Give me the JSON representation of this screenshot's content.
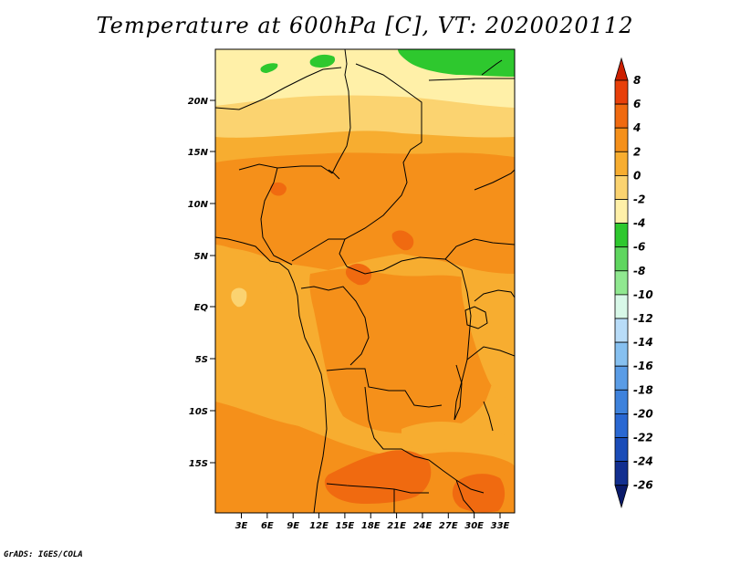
{
  "title": "Temperature at 600hPa [C], VT: 2020020112",
  "credit": "GrADS: IGES/COLA",
  "lat_ticks": [
    "20N",
    "15N",
    "10N",
    "5N",
    "EQ",
    "5S",
    "10S",
    "15S"
  ],
  "lon_ticks": [
    "3E",
    "6E",
    "9E",
    "12E",
    "15E",
    "18E",
    "21E",
    "24E",
    "27E",
    "30E",
    "33E"
  ],
  "colorbar": {
    "labels": [
      "8",
      "6",
      "4",
      "2",
      "0",
      "-2",
      "-4",
      "-6",
      "-8",
      "-10",
      "-12",
      "-14",
      "-16",
      "-18",
      "-20",
      "-22",
      "-24",
      "-26"
    ],
    "colors": [
      "#cc1f00",
      "#e8400a",
      "#f06a10",
      "#f5901a",
      "#f7ad30",
      "#fbd370",
      "#fff0a8",
      "#2ec82e",
      "#5fd65f",
      "#90e890",
      "#d8f8e8",
      "#b8dcf8",
      "#86c0f0",
      "#5a9ce6",
      "#3e82dc",
      "#2a68d2",
      "#1a4cb8",
      "#122f90",
      "#0a1a6a"
    ]
  },
  "colors": {
    "c_lt4": "#2ec82e",
    "c_m4": "#fff0a8",
    "c_m2": "#fbd370",
    "c_0": "#f7ad30",
    "c_2": "#f5901a",
    "c_4": "#f06a10",
    "c_6": "#e8400a"
  }
}
